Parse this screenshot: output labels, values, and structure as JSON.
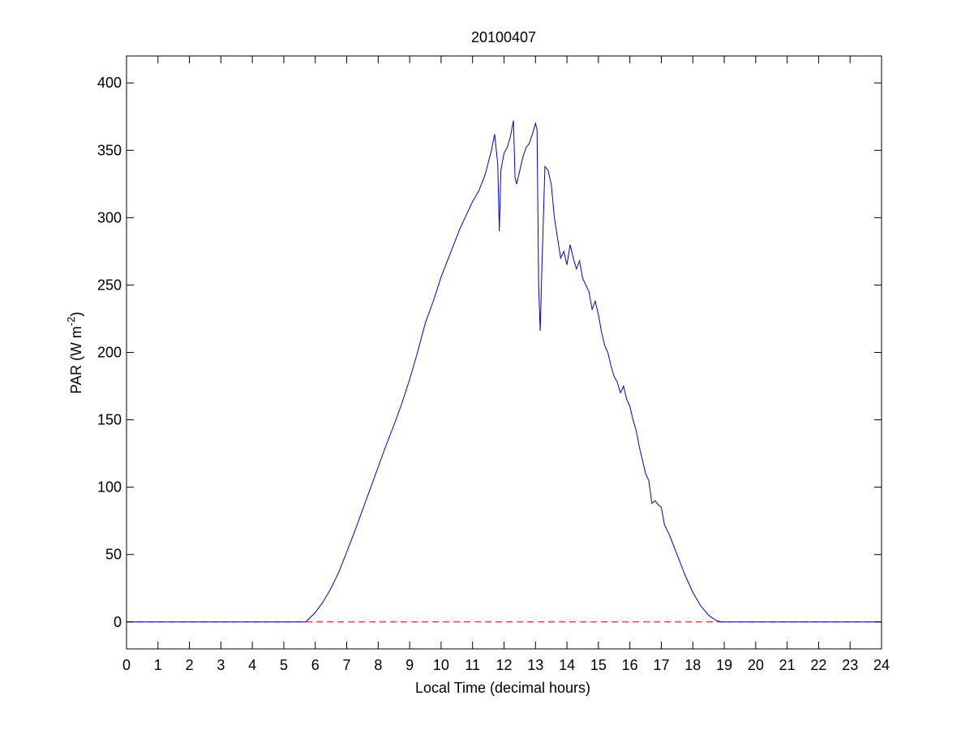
{
  "chart_data": {
    "type": "line",
    "title": "20100407",
    "xlabel": "Local Time (decimal hours)",
    "ylabel": {
      "text": "PAR (W m",
      "sup": "-2",
      "end": ")"
    },
    "x": [
      0,
      5.7,
      6,
      6.25,
      6.5,
      6.75,
      7,
      7.25,
      7.5,
      7.75,
      8,
      8.25,
      8.5,
      8.75,
      9,
      9.25,
      9.5,
      9.75,
      10,
      10.2,
      10.4,
      10.6,
      10.8,
      11,
      11.2,
      11.4,
      11.6,
      11.7,
      11.8,
      11.85,
      11.9,
      12,
      12.1,
      12.2,
      12.3,
      12.35,
      12.4,
      12.5,
      12.6,
      12.7,
      12.8,
      12.9,
      13,
      13.05,
      13.1,
      13.15,
      13.2,
      13.3,
      13.4,
      13.5,
      13.6,
      13.7,
      13.8,
      13.9,
      14,
      14.1,
      14.2,
      14.3,
      14.4,
      14.5,
      14.6,
      14.7,
      14.8,
      14.9,
      15,
      15.1,
      15.2,
      15.3,
      15.4,
      15.5,
      15.6,
      15.7,
      15.8,
      15.9,
      16,
      16.1,
      16.2,
      16.3,
      16.4,
      16.5,
      16.6,
      16.7,
      16.8,
      16.9,
      17,
      17.1,
      17.25,
      17.5,
      17.75,
      18,
      18.25,
      18.5,
      18.75,
      18.9,
      24
    ],
    "series": [
      {
        "color": "#0000cc",
        "values": [
          0,
          0,
          7,
          15,
          25,
          37,
          52,
          67,
          83,
          99,
          115,
          131,
          146,
          162,
          180,
          200,
          222,
          238,
          256,
          268,
          280,
          292,
          302,
          312,
          320,
          332,
          350,
          362,
          340,
          290,
          335,
          348,
          352,
          360,
          372,
          330,
          325,
          335,
          345,
          352,
          355,
          362,
          370,
          365,
          250,
          216,
          260,
          338,
          335,
          325,
          300,
          285,
          270,
          275,
          265,
          280,
          270,
          262,
          268,
          255,
          250,
          245,
          232,
          238,
          228,
          215,
          205,
          200,
          190,
          182,
          178,
          170,
          175,
          165,
          160,
          150,
          142,
          130,
          120,
          110,
          105,
          88,
          90,
          87,
          85,
          72,
          65,
          50,
          35,
          22,
          12,
          5,
          1,
          0,
          0
        ]
      }
    ],
    "hline": {
      "y": 0,
      "color": "#ff0000",
      "dashed": true
    },
    "xlim": [
      0,
      24
    ],
    "xticks": [
      0,
      1,
      2,
      3,
      4,
      5,
      6,
      7,
      8,
      9,
      10,
      11,
      12,
      13,
      14,
      15,
      16,
      17,
      18,
      19,
      20,
      21,
      22,
      23,
      24
    ],
    "ylim": [
      -20,
      420
    ],
    "yticks": [
      0,
      50,
      100,
      150,
      200,
      250,
      300,
      350,
      400
    ],
    "grid": false
  }
}
